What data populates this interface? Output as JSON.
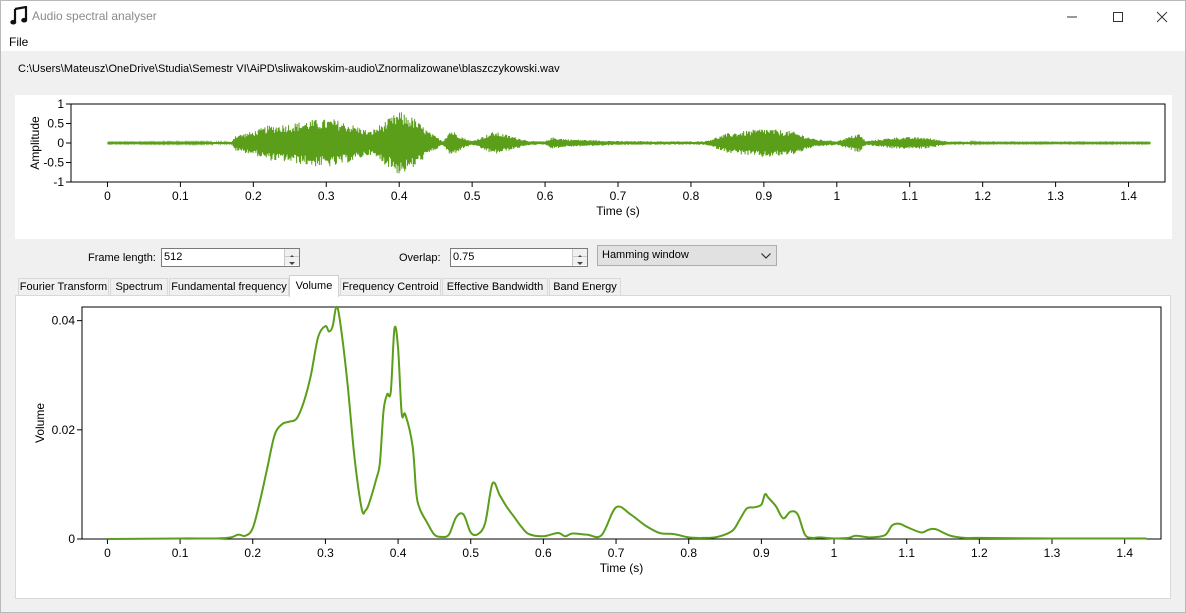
{
  "window": {
    "title": "Audio spectral analyser",
    "icon": "music-note-icon",
    "controls": [
      "minimize-icon",
      "maximize-icon",
      "close-icon"
    ]
  },
  "menu": {
    "file_label": "File"
  },
  "file_path": "C:\\Users\\Mateusz\\OneDrive\\Studia\\Semestr VI\\AiPD\\sliwakowskim-audio\\Znormalizowane\\blaszczykowski.wav",
  "controls": {
    "frame_length_label": "Frame length:",
    "frame_length_value": "512",
    "overlap_label": "Overlap:",
    "overlap_value": "0.75",
    "window_function": "Hamming window"
  },
  "tabs": [
    {
      "label": "Fourier Transform",
      "active": false
    },
    {
      "label": "Spectrum",
      "active": false
    },
    {
      "label": "Fundamental frequency",
      "active": false
    },
    {
      "label": "Volume",
      "active": true
    },
    {
      "label": "Frequency Centroid",
      "active": false
    },
    {
      "label": "Effective Bandwidth",
      "active": false
    },
    {
      "label": "Band Energy",
      "active": false
    }
  ],
  "colors": {
    "series": "#5a9e1a",
    "accent": "#000000"
  },
  "chart_data": [
    {
      "type": "line",
      "name": "waveform",
      "xlabel": "Time (s)",
      "ylabel": "Amplitude",
      "xlim": [
        -0.05,
        1.45
      ],
      "ylim": [
        -1,
        1
      ],
      "xticks": [
        0,
        0.1,
        0.2,
        0.3,
        0.4,
        0.5,
        0.6,
        0.7,
        0.8,
        0.9,
        1,
        1.1,
        1.2,
        1.3,
        1.4
      ],
      "yticks": [
        -1,
        -0.5,
        0,
        0.5,
        1
      ],
      "xtick_labels": [
        "0",
        "0.1",
        "0.2",
        "0.3",
        "0.4",
        "0.5",
        "0.6",
        "0.7",
        "0.8",
        "0.9",
        "1",
        "1.1",
        "1.2",
        "1.3",
        "1.4"
      ],
      "ytick_labels": [
        "-1",
        "-0.5",
        "0",
        "0.5",
        "1"
      ],
      "x_end": 1.43,
      "envelope": [
        [
          0.0,
          0.02
        ],
        [
          0.17,
          0.03
        ],
        [
          0.175,
          0.2
        ],
        [
          0.2,
          0.3
        ],
        [
          0.22,
          0.45
        ],
        [
          0.25,
          0.5
        ],
        [
          0.28,
          0.6
        ],
        [
          0.31,
          0.62
        ],
        [
          0.34,
          0.45
        ],
        [
          0.36,
          0.3
        ],
        [
          0.38,
          0.55
        ],
        [
          0.4,
          0.82
        ],
        [
          0.42,
          0.65
        ],
        [
          0.44,
          0.3
        ],
        [
          0.46,
          0.05
        ],
        [
          0.47,
          0.35
        ],
        [
          0.49,
          0.12
        ],
        [
          0.5,
          0.05
        ],
        [
          0.53,
          0.3
        ],
        [
          0.55,
          0.2
        ],
        [
          0.58,
          0.05
        ],
        [
          0.6,
          0.04
        ],
        [
          0.61,
          0.15
        ],
        [
          0.63,
          0.1
        ],
        [
          0.66,
          0.08
        ],
        [
          0.7,
          0.05
        ],
        [
          0.8,
          0.04
        ],
        [
          0.82,
          0.05
        ],
        [
          0.85,
          0.25
        ],
        [
          0.9,
          0.38
        ],
        [
          0.94,
          0.3
        ],
        [
          0.97,
          0.1
        ],
        [
          1.0,
          0.05
        ],
        [
          1.03,
          0.25
        ],
        [
          1.04,
          0.05
        ],
        [
          1.08,
          0.15
        ],
        [
          1.12,
          0.15
        ],
        [
          1.15,
          0.05
        ],
        [
          1.2,
          0.02
        ],
        [
          1.43,
          0.02
        ]
      ]
    },
    {
      "type": "line",
      "name": "volume",
      "xlabel": "Time (s)",
      "ylabel": "Volume",
      "xlim": [
        -0.035,
        1.45
      ],
      "ylim": [
        0,
        0.0425
      ],
      "xticks": [
        0,
        0.1,
        0.2,
        0.3,
        0.4,
        0.5,
        0.6,
        0.7,
        0.8,
        0.9,
        1,
        1.1,
        1.2,
        1.3,
        1.4
      ],
      "yticks": [
        0,
        0.02,
        0.04
      ],
      "xtick_labels": [
        "0",
        "0.1",
        "0.2",
        "0.3",
        "0.4",
        "0.5",
        "0.6",
        "0.7",
        "0.8",
        "0.9",
        "1",
        "1.1",
        "1.2",
        "1.3",
        "1.4"
      ],
      "ytick_labels": [
        "0",
        "0.02",
        "0.04"
      ],
      "x": [
        0,
        0.1,
        0.15,
        0.17,
        0.18,
        0.19,
        0.2,
        0.21,
        0.22,
        0.23,
        0.24,
        0.25,
        0.26,
        0.27,
        0.28,
        0.29,
        0.3,
        0.305,
        0.31,
        0.315,
        0.32,
        0.33,
        0.34,
        0.35,
        0.355,
        0.36,
        0.37,
        0.375,
        0.38,
        0.385,
        0.39,
        0.395,
        0.4,
        0.405,
        0.41,
        0.42,
        0.425,
        0.43,
        0.44,
        0.45,
        0.46,
        0.47,
        0.48,
        0.49,
        0.5,
        0.51,
        0.52,
        0.53,
        0.54,
        0.55,
        0.56,
        0.57,
        0.58,
        0.6,
        0.62,
        0.63,
        0.64,
        0.66,
        0.68,
        0.7,
        0.72,
        0.74,
        0.76,
        0.78,
        0.8,
        0.82,
        0.84,
        0.86,
        0.87,
        0.88,
        0.89,
        0.9,
        0.905,
        0.91,
        0.92,
        0.93,
        0.94,
        0.95,
        0.96,
        0.97,
        0.98,
        1.0,
        1.02,
        1.03,
        1.05,
        1.07,
        1.08,
        1.09,
        1.1,
        1.12,
        1.13,
        1.14,
        1.16,
        1.18,
        1.2,
        1.3,
        1.43
      ],
      "y": [
        0,
        0.0001,
        0.0001,
        0.0003,
        0.0008,
        0.0006,
        0.002,
        0.007,
        0.013,
        0.019,
        0.021,
        0.0215,
        0.022,
        0.025,
        0.03,
        0.037,
        0.039,
        0.038,
        0.039,
        0.0425,
        0.04,
        0.029,
        0.015,
        0.0055,
        0.0052,
        0.0065,
        0.011,
        0.014,
        0.0235,
        0.0265,
        0.027,
        0.0385,
        0.035,
        0.023,
        0.0228,
        0.017,
        0.0085,
        0.0055,
        0.003,
        0.0008,
        0.0004,
        0.0008,
        0.004,
        0.0045,
        0.0012,
        0.0009,
        0.003,
        0.0102,
        0.008,
        0.0058,
        0.004,
        0.0022,
        0.0009,
        0.0005,
        0.0011,
        0.0005,
        0.001,
        0.0008,
        0.0007,
        0.0058,
        0.0045,
        0.0025,
        0.0011,
        0.0009,
        0.0003,
        0.0002,
        0.0004,
        0.0015,
        0.0035,
        0.0056,
        0.0058,
        0.0063,
        0.0082,
        0.0075,
        0.006,
        0.0038,
        0.005,
        0.0045,
        0.0008,
        0.0002,
        0.0003,
        0.0001,
        0.0002,
        0.0006,
        0.0003,
        0.0007,
        0.0025,
        0.0028,
        0.0022,
        0.0012,
        0.0017,
        0.0018,
        0.0006,
        0.0002,
        0.0002,
        0.0001,
        0.0001
      ]
    }
  ]
}
